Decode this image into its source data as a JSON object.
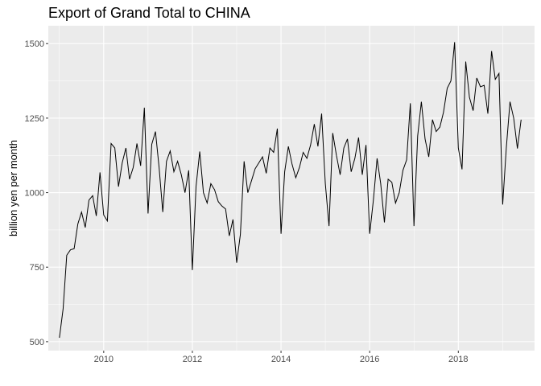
{
  "chart_data": {
    "type": "line",
    "title": "Export of Grand Total to CHINA",
    "xlabel": "",
    "ylabel": "billion yen per month",
    "xlim": [
      2008.75,
      2019.72
    ],
    "ylim": [
      470,
      1560
    ],
    "x_ticks": [
      2010,
      2012,
      2014,
      2016,
      2018
    ],
    "x_tick_labels": [
      "2010",
      "2012",
      "2014",
      "2016",
      "2018"
    ],
    "y_ticks": [
      500,
      750,
      1000,
      1250,
      1500
    ],
    "y_tick_labels": [
      "500",
      "750",
      "1000",
      "1250",
      "1500"
    ],
    "grid": true,
    "legend": "none",
    "colors": {
      "panel": "#ebebeb",
      "grid_major": "#ffffff",
      "line": "#000000",
      "tick_text": "#4d4d4d"
    },
    "series": [
      {
        "x_start": 2009.0,
        "x_step_months": 1,
        "values": [
          513,
          610,
          790,
          808,
          812,
          895,
          935,
          883,
          975,
          990,
          922,
          1068,
          925,
          905,
          1165,
          1150,
          1020,
          1100,
          1150,
          1045,
          1085,
          1165,
          1090,
          1285,
          930,
          1162,
          1205,
          1085,
          935,
          1105,
          1140,
          1070,
          1105,
          1060,
          1000,
          1075,
          740,
          1020,
          1138,
          1000,
          965,
          1030,
          1010,
          970,
          955,
          945,
          855,
          910,
          765,
          860,
          1105,
          1000,
          1040,
          1080,
          1100,
          1120,
          1065,
          1150,
          1135,
          1215,
          862,
          1070,
          1155,
          1095,
          1050,
          1085,
          1135,
          1115,
          1160,
          1230,
          1155,
          1265,
          1030,
          888,
          1200,
          1125,
          1060,
          1150,
          1180,
          1070,
          1115,
          1185,
          1060,
          1160,
          862,
          975,
          1115,
          1030,
          900,
          1045,
          1035,
          965,
          1000,
          1075,
          1110,
          1300,
          888,
          1190,
          1305,
          1180,
          1120,
          1245,
          1205,
          1220,
          1270,
          1350,
          1375,
          1505,
          1150,
          1078,
          1440,
          1320,
          1275,
          1385,
          1355,
          1360,
          1265,
          1475,
          1380,
          1400,
          960,
          1150,
          1305,
          1250,
          1148,
          1245
        ]
      }
    ]
  }
}
